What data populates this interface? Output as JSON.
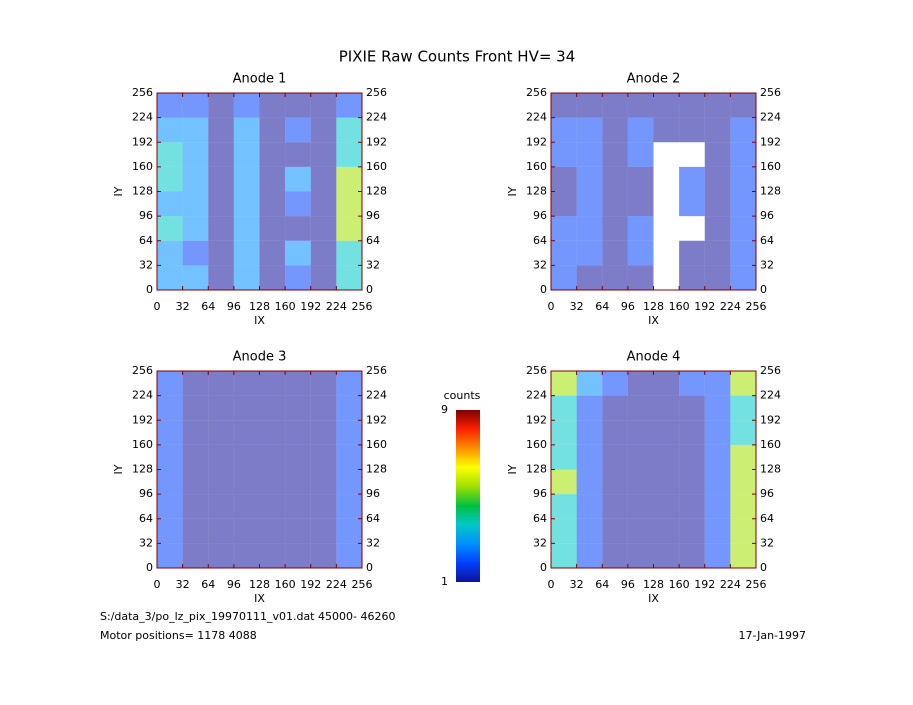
{
  "title": "PIXIE Raw Counts Front HV= 34",
  "footer": {
    "file": "S:/data_3/po_lz_pix_19970111_v01.dat   45000- 46260",
    "motor": "Motor positions= 1178 4088",
    "date": "17-Jan-1997"
  },
  "colorbar": {
    "label": "counts",
    "lim": [
      1,
      9
    ],
    "ticks": [
      1,
      9
    ],
    "colors": [
      "#10109a",
      "#0040ff",
      "#0090ff",
      "#00c8c8",
      "#00c040",
      "#a0e000",
      "#ffff00",
      "#ff9000",
      "#ff2000",
      "#800000"
    ]
  },
  "chart_data": [
    {
      "type": "heatmap",
      "title": "Anode 1",
      "xlabel": "IX",
      "ylabel": "IY",
      "xlim": [
        0,
        256
      ],
      "ylim": [
        0,
        256
      ],
      "xticks": [
        0,
        32,
        64,
        96,
        128,
        160,
        192,
        224,
        256
      ],
      "yticks": [
        0,
        32,
        64,
        96,
        128,
        160,
        192,
        224,
        256
      ],
      "z": [
        [
          3,
          3,
          1,
          3,
          1,
          2,
          1,
          4
        ],
        [
          3,
          2,
          1,
          3,
          1,
          3,
          1,
          4
        ],
        [
          4,
          3,
          1,
          3,
          1,
          1,
          1,
          5
        ],
        [
          3,
          3,
          1,
          3,
          1,
          2,
          1,
          5
        ],
        [
          4,
          3,
          1,
          3,
          1,
          3,
          1,
          5
        ],
        [
          4,
          3,
          1,
          3,
          1,
          1,
          1,
          4
        ],
        [
          3,
          3,
          1,
          3,
          1,
          2,
          1,
          4
        ],
        [
          2,
          2,
          1,
          2,
          1,
          1,
          1,
          2
        ]
      ]
    },
    {
      "type": "heatmap",
      "title": "Anode 2",
      "xlabel": "IX",
      "ylabel": "IY",
      "xlim": [
        0,
        256
      ],
      "ylim": [
        0,
        256
      ],
      "xticks": [
        0,
        32,
        64,
        96,
        128,
        160,
        192,
        224,
        256
      ],
      "yticks": [
        0,
        32,
        64,
        96,
        128,
        160,
        192,
        224,
        256
      ],
      "z": [
        [
          2,
          1,
          1,
          1,
          0,
          1,
          1,
          2
        ],
        [
          2,
          2,
          1,
          2,
          0,
          1,
          1,
          2
        ],
        [
          2,
          2,
          1,
          2,
          0,
          0,
          1,
          2
        ],
        [
          1,
          2,
          1,
          1,
          0,
          2,
          1,
          2
        ],
        [
          1,
          2,
          1,
          1,
          0,
          2,
          1,
          2
        ],
        [
          2,
          2,
          1,
          2,
          0,
          0,
          1,
          2
        ],
        [
          2,
          2,
          1,
          2,
          1,
          1,
          1,
          2
        ],
        [
          1,
          1,
          1,
          1,
          1,
          1,
          1,
          1
        ]
      ]
    },
    {
      "type": "heatmap",
      "title": "Anode 3",
      "xlabel": "IX",
      "ylabel": "IY",
      "xlim": [
        0,
        256
      ],
      "ylim": [
        0,
        256
      ],
      "xticks": [
        0,
        32,
        64,
        96,
        128,
        160,
        192,
        224,
        256
      ],
      "yticks": [
        0,
        32,
        64,
        96,
        128,
        160,
        192,
        224,
        256
      ],
      "z": [
        [
          2,
          1,
          1,
          1,
          1,
          1,
          1,
          2
        ],
        [
          2,
          1,
          1,
          1,
          1,
          1,
          1,
          2
        ],
        [
          2,
          1,
          1,
          1,
          1,
          1,
          1,
          2
        ],
        [
          2,
          1,
          1,
          1,
          1,
          1,
          1,
          2
        ],
        [
          2,
          1,
          1,
          1,
          1,
          1,
          1,
          2
        ],
        [
          2,
          1,
          1,
          1,
          1,
          1,
          1,
          2
        ],
        [
          2,
          1,
          1,
          1,
          1,
          1,
          1,
          2
        ],
        [
          2,
          1,
          1,
          1,
          1,
          1,
          1,
          2
        ]
      ]
    },
    {
      "type": "heatmap",
      "title": "Anode 4",
      "xlabel": "IX",
      "ylabel": "IY",
      "xlim": [
        0,
        256
      ],
      "ylim": [
        0,
        256
      ],
      "xticks": [
        0,
        32,
        64,
        96,
        128,
        160,
        192,
        224,
        256
      ],
      "yticks": [
        0,
        32,
        64,
        96,
        128,
        160,
        192,
        224,
        256
      ],
      "z": [
        [
          4,
          2,
          1,
          1,
          1,
          1,
          2,
          5
        ],
        [
          4,
          2,
          1,
          1,
          1,
          1,
          2,
          5
        ],
        [
          4,
          2,
          1,
          1,
          1,
          1,
          2,
          5
        ],
        [
          5,
          2,
          1,
          1,
          1,
          1,
          2,
          5
        ],
        [
          4,
          2,
          1,
          1,
          1,
          1,
          2,
          5
        ],
        [
          4,
          2,
          1,
          1,
          1,
          1,
          2,
          4
        ],
        [
          4,
          2,
          1,
          1,
          1,
          1,
          2,
          4
        ],
        [
          5,
          3,
          2,
          1,
          1,
          2,
          2,
          5
        ]
      ]
    }
  ]
}
